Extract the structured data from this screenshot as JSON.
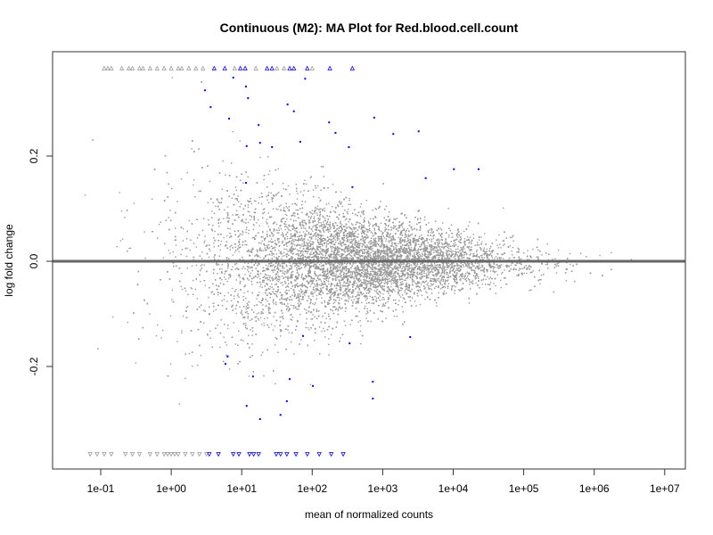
{
  "chart_data": {
    "type": "scatter",
    "title": "Continuous (M2): MA Plot for Red.blood.cell.count",
    "xlabel": "mean of normalized counts",
    "ylabel": "log fold change",
    "x_scale": "log10",
    "xlim_log10": [
      -1.5,
      7.3
    ],
    "ylim": [
      -0.4,
      0.4
    ],
    "x_ticks_log10": [
      -1,
      0,
      1,
      2,
      3,
      4,
      5,
      6,
      7
    ],
    "x_tick_labels": [
      "1e-01",
      "1e+00",
      "1e+01",
      "1e+02",
      "1e+03",
      "1e+04",
      "1e+05",
      "1e+06",
      "1e+07"
    ],
    "y_ticks": [
      -0.2,
      0.0,
      0.2
    ],
    "y_tick_labels": [
      "-0.2",
      "0.0",
      "0.2"
    ],
    "reference_line_y": 0,
    "colors": {
      "nonsignificant": "#999999",
      "significant": "#0000ff",
      "reference_line": "#666666"
    },
    "nonsignificant_cloud": {
      "n_points": 12000,
      "log10_mean_center": 2.6,
      "log10_mean_sd": 1.1,
      "lfc_sd_at_log10_0": 0.11,
      "lfc_sd_at_log10_4": 0.03,
      "clip_value": 0.367,
      "seed": 12345
    },
    "significant_points_log10x_lfc": [
      [
        0.48,
        0.325
      ],
      [
        0.88,
        0.349
      ],
      [
        0.56,
        0.293
      ],
      [
        0.82,
        0.271
      ],
      [
        1.06,
        0.332
      ],
      [
        1.09,
        0.31
      ],
      [
        1.24,
        0.259
      ],
      [
        1.26,
        0.225
      ],
      [
        1.07,
        0.219
      ],
      [
        1.43,
        0.217
      ],
      [
        1.65,
        0.298
      ],
      [
        1.74,
        0.285
      ],
      [
        1.83,
        0.227
      ],
      [
        1.9,
        0.347
      ],
      [
        2.24,
        0.264
      ],
      [
        2.33,
        0.244
      ],
      [
        2.52,
        0.217
      ],
      [
        2.57,
        0.141
      ],
      [
        2.88,
        0.273
      ],
      [
        3.15,
        0.242
      ],
      [
        3.51,
        0.247
      ],
      [
        3.61,
        0.158
      ],
      [
        4.01,
        0.175
      ],
      [
        4.36,
        0.175
      ],
      [
        1.06,
        0.149
      ],
      [
        0.77,
        -0.195
      ],
      [
        1.16,
        -0.219
      ],
      [
        1.07,
        -0.275
      ],
      [
        1.26,
        -0.3
      ],
      [
        1.55,
        -0.292
      ],
      [
        1.64,
        -0.266
      ],
      [
        1.68,
        -0.224
      ],
      [
        2.01,
        -0.237
      ],
      [
        1.87,
        -0.142
      ],
      [
        3.39,
        -0.144
      ],
      [
        2.86,
        -0.229
      ],
      [
        2.86,
        -0.261
      ],
      [
        2.53,
        -0.156
      ],
      [
        0.8,
        -0.181
      ]
    ],
    "clipped_up_significant_log10x": [
      0.61,
      0.76,
      0.98,
      1.05,
      1.36,
      1.43,
      1.68,
      1.74,
      1.93,
      2.25,
      2.57
    ],
    "clipped_down_significant_log10x": [
      0.54,
      0.67,
      0.88,
      0.96,
      1.11,
      1.17,
      1.24,
      1.49,
      1.55,
      1.64,
      1.77,
      1.93,
      2.1,
      2.27,
      2.44
    ],
    "clipped_up_nonsignificant_log10x": [
      -0.95,
      -0.9,
      -0.85,
      -0.7,
      -0.6,
      -0.55,
      -0.45,
      -0.4,
      -0.3,
      -0.2,
      -0.1,
      0.0,
      0.1,
      0.15,
      0.25,
      0.35,
      0.45,
      0.9,
      1.2,
      1.5,
      1.6,
      2.0
    ],
    "clipped_down_nonsignificant_log10x": [
      -1.15,
      -1.05,
      -0.95,
      -0.85,
      -0.65,
      -0.55,
      -0.45,
      -0.3,
      -0.2,
      -0.1,
      -0.05,
      0.0,
      0.05,
      0.1,
      0.2,
      0.3,
      0.4,
      0.5
    ]
  }
}
